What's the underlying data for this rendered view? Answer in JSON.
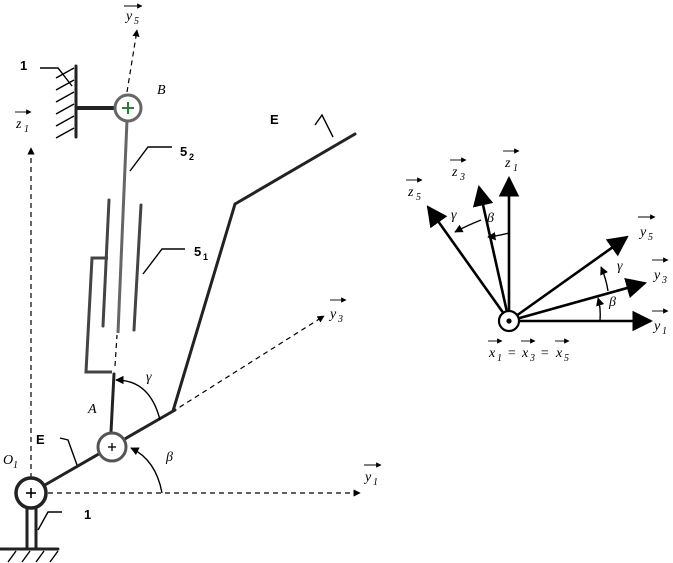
{
  "labels": {
    "y5": "y",
    "y5_sub": "5",
    "z1": "z",
    "z1_sub": "1",
    "y3": "y",
    "y3_sub": "3",
    "y1": "y",
    "y1_sub": "1",
    "point_B": "B",
    "point_A": "A",
    "point_O1": "O",
    "point_O1_sub": "1",
    "part_1_top": "1",
    "part_1_bottom": "1",
    "part_E_top": "E",
    "part_E_left": "E",
    "part_52": "5",
    "part_52_sub": "2",
    "part_51": "5",
    "part_51_sub": "1",
    "gamma": "γ",
    "beta": "β"
  },
  "frame": {
    "z1": "z",
    "z1_sub": "1",
    "z3": "z",
    "z3_sub": "3",
    "z5": "z",
    "z5_sub": "5",
    "y1": "y",
    "y1_sub": "1",
    "y3": "y",
    "y3_sub": "3",
    "y5": "y",
    "y5_sub": "5",
    "gamma_top": "γ",
    "beta_top": "β",
    "gamma_right": "γ",
    "beta_right": "β",
    "x_eq": [
      "x",
      "1",
      "=",
      "x",
      "3",
      "=",
      "x",
      "5"
    ]
  }
}
